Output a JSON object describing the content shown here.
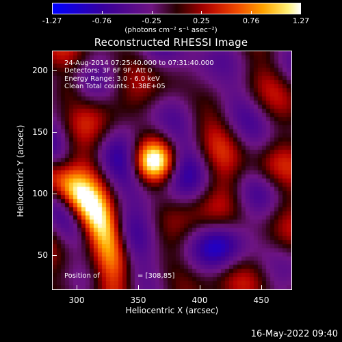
{
  "colorbar": {
    "ticks": [
      "-1.27",
      "-0.76",
      "-0.25",
      "0.25",
      "0.76",
      "1.27"
    ],
    "units": "(photons cm⁻² s⁻¹ asec⁻²)"
  },
  "title": "Reconstructed RHESSI Image",
  "info": {
    "time": "24-Aug-2014 07:25:40.000 to 07:31:40.000",
    "detectors": "Detectors: 3F 6F 9F, Att 0",
    "energy": "Energy Range: 3.0 - 6.0 keV",
    "clean": "Clean     Total counts: 1.38E+05",
    "position": "Position of",
    "position_value": "= [308,85]"
  },
  "axes": {
    "xlabel": "Heliocentric X (arcsec)",
    "ylabel": "Heliocentric Y (arcsec)",
    "xticks": [
      "300",
      "350",
      "400",
      "450"
    ],
    "yticks": [
      "200",
      "150",
      "100",
      "50"
    ]
  },
  "datestamp": "16-May-2022 09:40",
  "chart_data": {
    "type": "heatmap",
    "title": "Reconstructed RHESSI Image",
    "xlabel": "Heliocentric X (arcsec)",
    "ylabel": "Heliocentric Y (arcsec)",
    "xlim": [
      280,
      475
    ],
    "ylim": [
      22,
      216
    ],
    "color_range": [
      -1.27,
      1.27
    ],
    "colormap": "RHESSI fire: black-blue-purple-red-orange-yellow-white",
    "sources": [
      {
        "x": 363,
        "y": 126,
        "value": 1.1
      },
      {
        "x": 318,
        "y": 85,
        "value": 1.27
      }
    ]
  }
}
